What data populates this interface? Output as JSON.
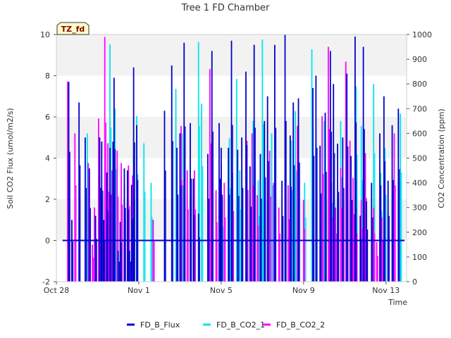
{
  "chart_data": {
    "type": "line",
    "title": "Tree 1 FD Chamber",
    "xlabel": "Time",
    "ylabel": "Soil CO2 Flux (umol/m2/s)",
    "y2label": "CO2 Concentration (ppm)",
    "ylim": [
      -2,
      10
    ],
    "y2lim": [
      0,
      1000
    ],
    "xlim": [
      0,
      17
    ],
    "yticks": [
      -2,
      0,
      2,
      4,
      6,
      8,
      10
    ],
    "y2ticks": [
      0,
      100,
      200,
      300,
      400,
      500,
      600,
      700,
      800,
      900,
      1000
    ],
    "xticks": [
      {
        "value": 0,
        "label": "Oct 28"
      },
      {
        "value": 4,
        "label": "Nov 1"
      },
      {
        "value": 8,
        "label": "Nov 5"
      },
      {
        "value": 12,
        "label": "Nov 9"
      },
      {
        "value": 16,
        "label": "Nov 13"
      }
    ],
    "band_label": "TZ_fd",
    "legend_position": "bottom",
    "series": [
      {
        "name": "FD_B_Flux",
        "axis": "left",
        "color": "#0000cc",
        "baseline": 0,
        "x": [
          0.6,
          0.75,
          1.1,
          1.4,
          1.6,
          1.9,
          2.1,
          2.2,
          2.3,
          2.45,
          2.6,
          2.75,
          2.8,
          3.0,
          3.1,
          3.3,
          3.45,
          3.55,
          3.65,
          3.75,
          3.9,
          5.25,
          5.6,
          5.85,
          6.0,
          6.2,
          6.5,
          6.65,
          6.9,
          7.35,
          7.55,
          7.9,
          8.0,
          8.35,
          8.5,
          8.8,
          9.0,
          9.2,
          9.4,
          9.6,
          9.9,
          10.1,
          10.25,
          10.6,
          10.95,
          11.1,
          11.35,
          11.5,
          11.75,
          12.45,
          12.6,
          12.8,
          13.05,
          13.3,
          13.45,
          13.65,
          13.9,
          14.1,
          14.3,
          14.5,
          14.75,
          14.9,
          15.05,
          15.3,
          15.7,
          15.9,
          16.1,
          16.3,
          16.6
        ],
        "values": [
          7.7,
          1.0,
          6.7,
          5.0,
          3.5,
          1.2,
          5.0,
          4.8,
          1.0,
          3.3,
          4.5,
          4.8,
          7.9,
          -0.5,
          0.9,
          3.5,
          3.4,
          -0.5,
          2.7,
          8.4,
          5.6,
          6.3,
          8.5,
          4.5,
          5.2,
          9.6,
          5.7,
          3.0,
          1.3,
          4.2,
          9.2,
          5.7,
          4.5,
          4.5,
          9.7,
          4.4,
          5.0,
          8.2,
          3.6,
          9.5,
          4.2,
          5.8,
          7.0,
          9.5,
          2.9,
          10.0,
          5.1,
          6.7,
          6.9,
          7.4,
          8.0,
          4.6,
          6.2,
          9.2,
          7.6,
          4.7,
          5.0,
          8.1,
          4.1,
          9.9,
          1.2,
          9.4,
          1.9,
          2.8,
          5.2,
          7.0,
          2.9,
          5.6,
          6.4
        ]
      },
      {
        "name": "FD_B_CO2_1",
        "axis": "right",
        "color": "#00e5ee",
        "x": [
          1.5,
          2.6,
          2.85,
          3.5,
          3.75,
          3.9,
          4.25,
          4.6,
          5.8,
          6.1,
          6.9,
          7.05,
          8.05,
          8.4,
          8.75,
          8.9,
          9.55,
          9.8,
          10.0,
          10.45,
          11.4,
          11.6,
          12.05,
          12.4,
          12.6,
          13.0,
          13.2,
          13.4,
          13.8,
          14.1,
          14.55,
          14.8,
          15.4,
          15.75,
          15.95,
          16.7
        ],
        "values": [
          600,
          960,
          700,
          350,
          510,
          670,
          560,
          400,
          780,
          600,
          970,
          720,
          340,
          580,
          820,
          450,
          650,
          410,
          980,
          600,
          570,
          690,
          400,
          940,
          560,
          650,
          800,
          320,
          650,
          470,
          790,
          630,
          800,
          440,
          540,
          680
        ]
      },
      {
        "name": "FD_B_CO2_2",
        "axis": "right",
        "color": "#ff00ff",
        "x": [
          0.55,
          0.9,
          1.55,
          1.75,
          1.85,
          2.05,
          2.2,
          2.35,
          2.5,
          2.7,
          2.95,
          3.15,
          3.3,
          3.5,
          3.7,
          4.7,
          6.05,
          6.35,
          6.7,
          7.45,
          7.75,
          8.0,
          8.15,
          8.55,
          9.25,
          9.5,
          9.75,
          10.35,
          10.55,
          10.8,
          11.25,
          11.7,
          12.0,
          12.9,
          13.2,
          13.35,
          13.55,
          13.8,
          14.05,
          14.25,
          14.4,
          14.55,
          14.8,
          15.0,
          15.4,
          15.55,
          15.8,
          16.1,
          16.4
        ],
        "values": [
          810,
          600,
          480,
          150,
          300,
          660,
          240,
          990,
          560,
          450,
          530,
          480,
          390,
          470,
          430,
          250,
          630,
          450,
          450,
          860,
          370,
          480,
          400,
          440,
          570,
          600,
          350,
          530,
          400,
          300,
          390,
          630,
          330,
          670,
          950,
          400,
          300,
          460,
          890,
          570,
          420,
          300,
          330,
          520,
          300,
          160,
          260,
          280,
          600
        ]
      }
    ]
  }
}
